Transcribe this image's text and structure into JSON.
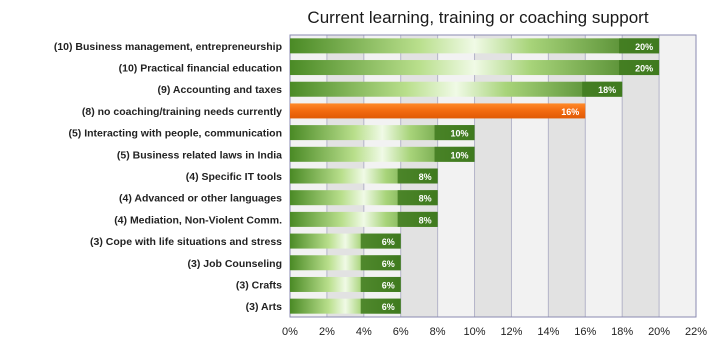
{
  "chart_data": {
    "type": "bar",
    "orientation": "horizontal",
    "title": "Current learning, training or coaching support",
    "xlabel": "",
    "ylabel": "",
    "xlim": [
      0,
      22
    ],
    "x_ticks": [
      "0%",
      "2%",
      "4%",
      "6%",
      "8%",
      "10%",
      "12%",
      "14%",
      "16%",
      "18%",
      "20%",
      "22%"
    ],
    "grid": true,
    "legend": "none",
    "categories": [
      "(10) Business management, entrepreneurship",
      "(10) Practical financial education",
      "(9) Accounting and taxes",
      "(8) no coaching/training needs currently",
      "(5) Interacting with people, communication",
      "(5) Business related laws in India",
      "(4) Specific IT tools",
      "(4) Advanced or other languages",
      "(4) Mediation, Non-Violent Comm.",
      "(3) Cope with life situations and stress",
      "(3) Job Counseling",
      "(3) Crafts",
      "(3) Arts"
    ],
    "values": [
      20,
      20,
      18,
      16,
      10,
      10,
      8,
      8,
      8,
      6,
      6,
      6,
      6
    ],
    "data_labels": [
      "20%",
      "20%",
      "18%",
      "16%",
      "10%",
      "10%",
      "8%",
      "8%",
      "8%",
      "6%",
      "6%",
      "6%",
      "6%"
    ],
    "highlight_index": 3,
    "colors": {
      "bar_dark": "#3f7a1f",
      "bar_mid": "#7cb342",
      "bar_light": "#e8f5d8",
      "highlight": "#f26a0f",
      "highlight_light": "#ff9a3c",
      "plot_bg": "#f2f2f2",
      "band": "#e2e2e2",
      "grid": "#b4b4c8",
      "border": "#8a8ab0",
      "label": "#ffffff"
    }
  }
}
